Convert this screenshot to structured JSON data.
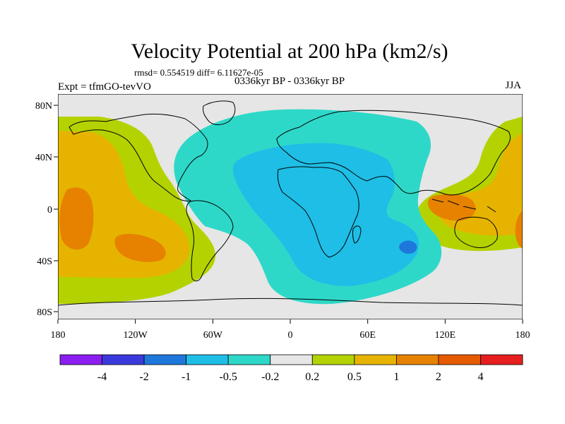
{
  "title": "Velocity Potential at 200 hPa (km2/s)",
  "stats_line": "rmsd= 0.554519 diff= 6.11627e-05",
  "left_label": "Expt = tfmGO-tevVO",
  "center_label": "0336kyr BP - 0336kyr BP",
  "right_label": "JJA",
  "lat_labels": [
    "80N",
    "40N",
    "0",
    "40S",
    "80S"
  ],
  "lon_labels": [
    "180",
    "120W",
    "60W",
    "0",
    "60E",
    "120E",
    "180"
  ],
  "colorbar": {
    "colors": [
      "#8a1ef0",
      "#3a3adc",
      "#1e78dc",
      "#1ebee6",
      "#2ed8c8",
      "#e6e6e6",
      "#b4d200",
      "#e6b400",
      "#e68200",
      "#e65a00",
      "#e61e1e"
    ],
    "labels": [
      "-4",
      "-2",
      "-1",
      "-0.5",
      "-0.2",
      "0.2",
      "0.5",
      "1",
      "2",
      "4"
    ]
  },
  "fill_colors": {
    "neutral": "#e6e6e6",
    "neg_0_2": "#2ed8c8",
    "neg_0_5": "#1ebee6",
    "neg_1": "#1e78dc",
    "pos_0_2": "#b4d200",
    "pos_0_5": "#e6b400",
    "pos_1": "#e68200"
  }
}
